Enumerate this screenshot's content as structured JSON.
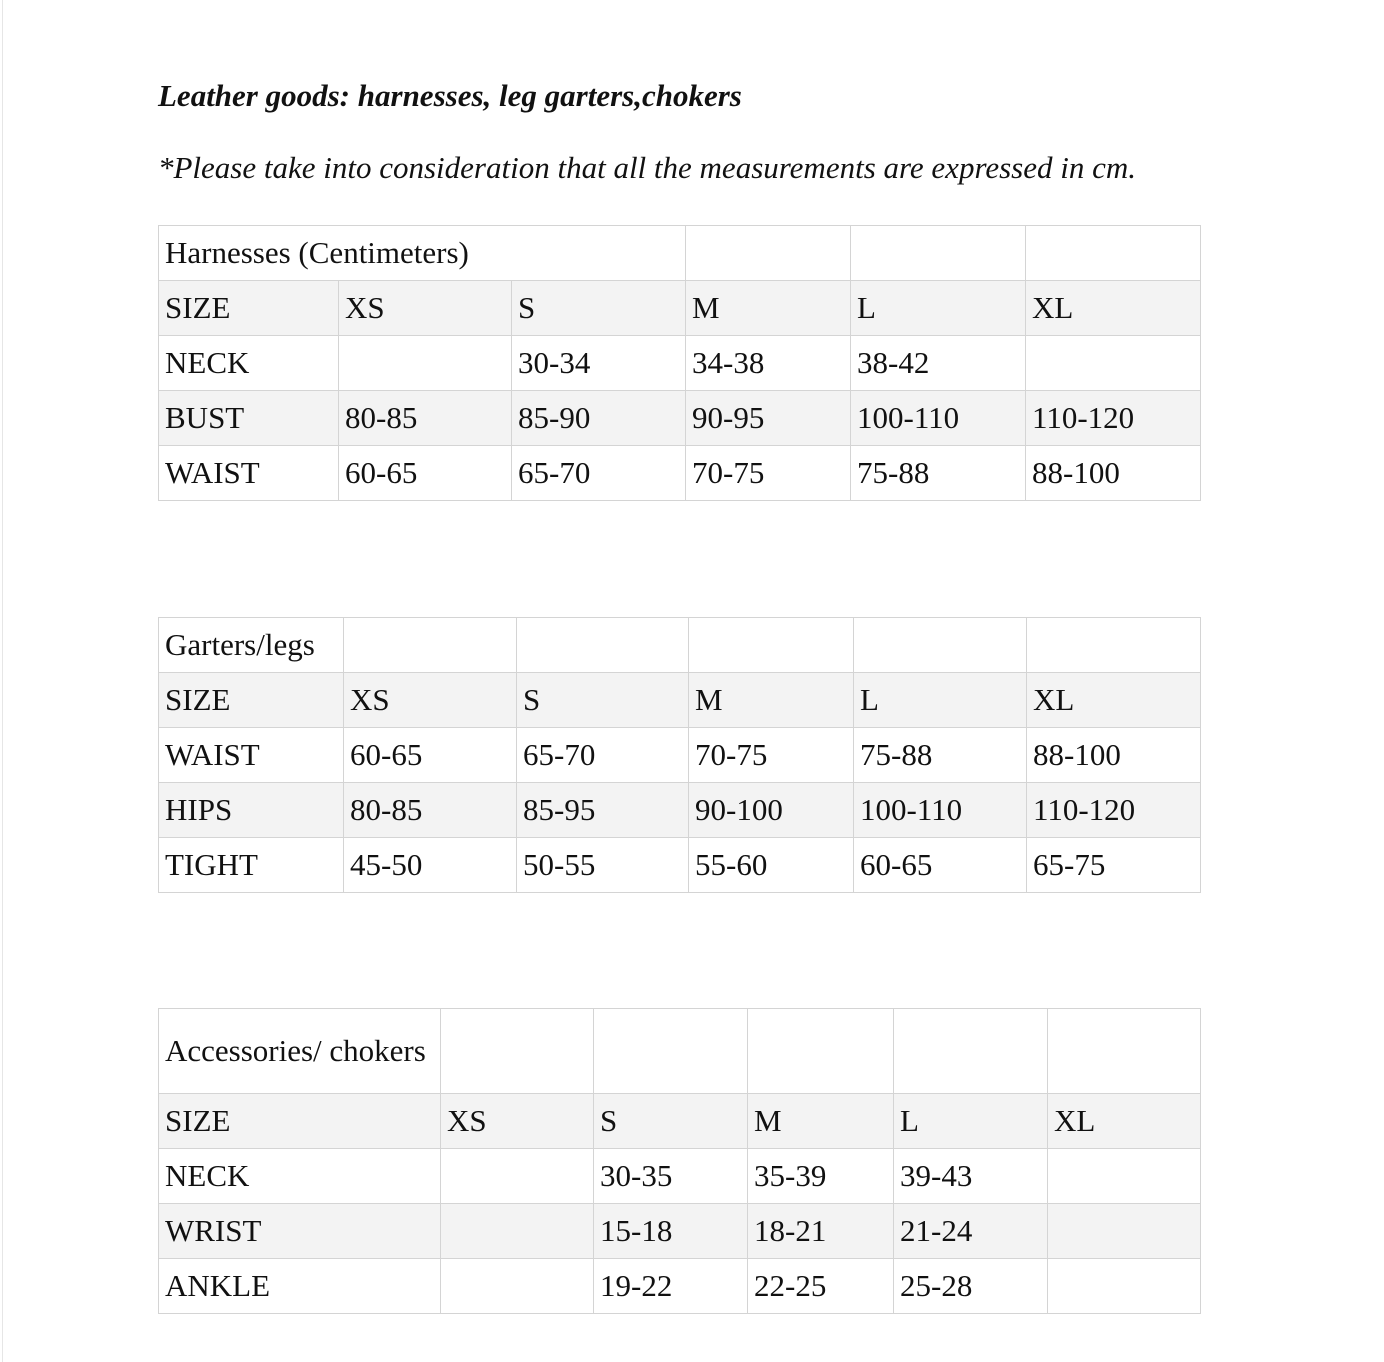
{
  "title": "Leather goods: harnesses, leg garters,chokers",
  "note": "*Please take into consideration that all the measurements are expressed in cm.",
  "tables": [
    {
      "caption": "Harnesses (Centimeters)",
      "sizes": [
        "SIZE",
        "XS",
        "S",
        "M",
        "L",
        "XL"
      ],
      "rows": [
        [
          "NECK",
          "",
          "30-34",
          "34-38",
          "38-42",
          ""
        ],
        [
          "BUST",
          "80-85",
          "85-90",
          "90-95",
          "100-110",
          "110-120"
        ],
        [
          "WAIST",
          "60-65",
          "65-70",
          "70-75",
          "75-88",
          "88-100"
        ]
      ]
    },
    {
      "caption": "Garters/legs",
      "sizes": [
        "SIZE",
        "XS",
        "S",
        "M",
        "L",
        "XL"
      ],
      "rows": [
        [
          "WAIST",
          "60-65",
          "65-70",
          "70-75",
          "75-88",
          "88-100"
        ],
        [
          "HIPS",
          "80-85",
          "85-95",
          "90-100",
          "100-110",
          "110-120"
        ],
        [
          "TIGHT",
          "45-50",
          "50-55",
          "55-60",
          "60-65",
          "65-75"
        ]
      ]
    },
    {
      "caption": "Accessories/ chokers",
      "sizes": [
        "SIZE",
        "XS",
        "S",
        "M",
        "L",
        "XL"
      ],
      "rows": [
        [
          "NECK",
          "",
          "30-35",
          "35-39",
          "39-43",
          ""
        ],
        [
          "WRIST",
          "",
          "15-18",
          "18-21",
          "21-24",
          ""
        ],
        [
          "ANKLE",
          "",
          "19-22",
          "22-25",
          "25-28",
          ""
        ]
      ]
    }
  ]
}
